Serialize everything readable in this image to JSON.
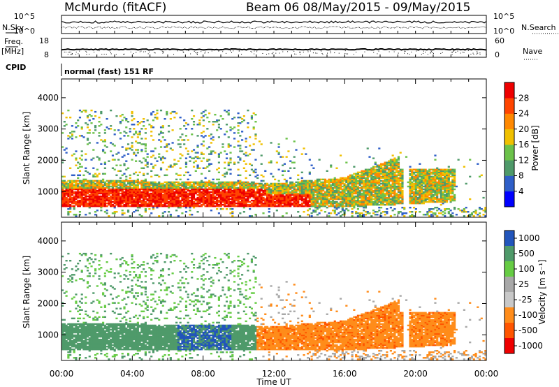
{
  "header": {
    "station": "McMurdo (fitACF)",
    "beam_dates": "Beam 06 08/May/2015 - 09/May/2015"
  },
  "panel_labels": {
    "n_sky": "N.Sky",
    "n_search": "N.Search",
    "freq_top": "Freq.",
    "freq_unit": "[MHz]",
    "nave": "Nave",
    "cpid": "CPID",
    "cpid_value": "normal (fast) 151 RF"
  },
  "strip_ticks": {
    "noise_left": [
      "10^5",
      "10^0"
    ],
    "noise_right": [
      "10^5",
      "10^0"
    ],
    "freq_left": [
      "18",
      "8"
    ],
    "nave_right": [
      "60",
      "0"
    ]
  },
  "colors": {
    "scale": [
      "#0000ff",
      "#2f5fc8",
      "#4f9a6a",
      "#6cc24a",
      "#f0c000",
      "#ff8800",
      "#ff4400",
      "#ee0000"
    ],
    "velocity_scale": [
      "#ee0000",
      "#ff5500",
      "#ff8c1a",
      "#c8c8c8",
      "#a8a8a8",
      "#66cc44",
      "#4f9a6a",
      "#2255bb"
    ]
  },
  "chart_data": [
    {
      "type": "heatmap",
      "name": "power",
      "xlabel": "",
      "ylabel": "Slant Range [km]",
      "ylim": [
        180,
        4600
      ],
      "yticks": [
        1000,
        2000,
        3000,
        4000
      ],
      "colorbar_label": "Power [dB]",
      "colorbar_ticks": [
        "4",
        "8",
        "12",
        "16",
        "20",
        "24",
        "28"
      ]
    },
    {
      "type": "heatmap",
      "name": "velocity",
      "xlabel": "Time UT",
      "ylabel": "Slant Range [km]",
      "ylim": [
        180,
        4600
      ],
      "yticks": [
        1000,
        2000,
        3000,
        4000
      ],
      "xticks": [
        "00:00",
        "04:00",
        "08:00",
        "12:00",
        "16:00",
        "20:00",
        "00:00"
      ],
      "colorbar_label": "Velocity [m s⁻¹]",
      "colorbar_ticks": [
        "1000",
        "500",
        "100",
        "25",
        "-25",
        "-100",
        "-500",
        "-1000"
      ]
    }
  ]
}
